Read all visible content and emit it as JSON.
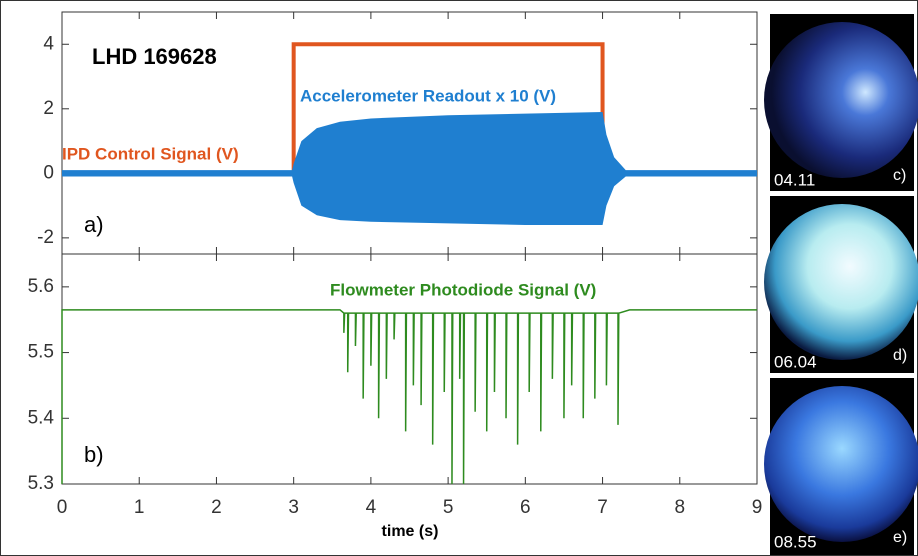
{
  "chart_data": [
    {
      "type": "line",
      "title": "LHD 169628",
      "panel_label": "a)",
      "xlim": [
        0,
        9
      ],
      "ylim": [
        -2.5,
        5
      ],
      "yticks": [
        -2,
        0,
        2,
        4
      ],
      "series": [
        {
          "name": "IPD Control Signal (V)",
          "color": "#e0561f",
          "x": [
            0,
            3,
            3,
            7,
            7,
            9
          ],
          "values": [
            0,
            0,
            4,
            4,
            0,
            0
          ]
        },
        {
          "name": "Accelerometer Readout x 10 (V)",
          "color": "#1f7fd0",
          "x": [
            0,
            2.98,
            3.0,
            3.1,
            3.3,
            3.6,
            4,
            5,
            6,
            7,
            7.05,
            7.15,
            7.3,
            9
          ],
          "high": [
            0.1,
            0.1,
            0.3,
            1.0,
            1.4,
            1.6,
            1.7,
            1.8,
            1.85,
            1.9,
            1.2,
            0.5,
            0.1,
            0.1
          ],
          "low": [
            -0.1,
            -0.1,
            -0.3,
            -1.0,
            -1.3,
            -1.45,
            -1.5,
            -1.55,
            -1.6,
            -1.6,
            -1.0,
            -0.4,
            -0.1,
            -0.1
          ]
        }
      ]
    },
    {
      "type": "line",
      "panel_label": "b)",
      "xlabel": "time (s)",
      "xlim": [
        0,
        9
      ],
      "xticks": [
        0,
        1,
        2,
        3,
        4,
        5,
        6,
        7,
        8,
        9
      ],
      "ylim": [
        5.3,
        5.65
      ],
      "yticks": [
        5.3,
        5.4,
        5.5,
        5.6
      ],
      "series": [
        {
          "name": "Flowmeter Photodiode Signal (V)",
          "color": "#2e8b1f",
          "x": [
            0,
            0,
            3.6,
            3.65,
            3.65,
            3.66,
            3.7,
            3.7,
            3.71,
            3.8,
            3.8,
            3.81,
            3.9,
            3.9,
            3.91,
            4.0,
            4.0,
            4.01,
            4.1,
            4.1,
            4.11,
            4.2,
            4.2,
            4.21,
            4.3,
            4.3,
            4.31,
            4.45,
            4.45,
            4.46,
            4.55,
            4.55,
            4.56,
            4.65,
            4.65,
            4.66,
            4.8,
            4.8,
            4.81,
            4.95,
            4.95,
            4.96,
            5.05,
            5.05,
            5.06,
            5.15,
            5.15,
            5.16,
            5.2,
            5.2,
            5.21,
            5.35,
            5.35,
            5.36,
            5.5,
            5.5,
            5.51,
            5.6,
            5.6,
            5.61,
            5.75,
            5.75,
            5.76,
            5.9,
            5.9,
            5.91,
            6.05,
            6.05,
            6.06,
            6.2,
            6.2,
            6.21,
            6.35,
            6.35,
            6.36,
            6.5,
            6.5,
            6.51,
            6.6,
            6.6,
            6.61,
            6.75,
            6.75,
            6.76,
            6.9,
            6.9,
            6.91,
            7.05,
            7.05,
            7.06,
            7.2,
            7.2,
            7.21,
            7.35,
            9
          ],
          "values": [
            5.3,
            5.565,
            5.565,
            5.56,
            5.53,
            5.56,
            5.56,
            5.47,
            5.56,
            5.56,
            5.51,
            5.56,
            5.56,
            5.43,
            5.56,
            5.56,
            5.48,
            5.56,
            5.56,
            5.4,
            5.56,
            5.56,
            5.46,
            5.56,
            5.56,
            5.52,
            5.56,
            5.56,
            5.38,
            5.56,
            5.56,
            5.45,
            5.56,
            5.56,
            5.42,
            5.56,
            5.56,
            5.36,
            5.56,
            5.56,
            5.44,
            5.56,
            5.56,
            5.3,
            5.56,
            5.56,
            5.46,
            5.56,
            5.56,
            5.3,
            5.56,
            5.56,
            5.41,
            5.56,
            5.56,
            5.38,
            5.56,
            5.56,
            5.44,
            5.56,
            5.56,
            5.4,
            5.56,
            5.56,
            5.36,
            5.56,
            5.56,
            5.44,
            5.56,
            5.56,
            5.38,
            5.56,
            5.56,
            5.46,
            5.56,
            5.56,
            5.4,
            5.56,
            5.56,
            5.45,
            5.56,
            5.56,
            5.4,
            5.56,
            5.56,
            5.43,
            5.56,
            5.56,
            5.45,
            5.56,
            5.56,
            5.39,
            5.56,
            5.565,
            5.565
          ]
        }
      ]
    }
  ],
  "images": [
    {
      "timestamp": "04.11",
      "label": "c)"
    },
    {
      "timestamp": "06.04",
      "label": "d)"
    },
    {
      "timestamp": "08.55",
      "label": "e)"
    }
  ]
}
